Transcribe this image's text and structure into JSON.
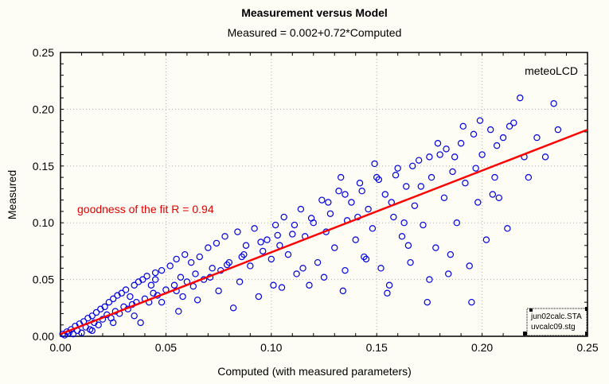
{
  "chart_data": {
    "type": "scatter",
    "title": "Measurement versus Model",
    "subtitle": "Measured = 0.002+0.72*Computed",
    "xlabel": "Computed (with measured parameters)",
    "ylabel": "Measured",
    "xlim": [
      0,
      0.25
    ],
    "ylim": [
      0,
      0.25
    ],
    "xticks": [
      "0.00",
      "0.05",
      "0.10",
      "0.15",
      "0.20",
      "0.25"
    ],
    "yticks": [
      "0.00",
      "0.05",
      "0.10",
      "0.15",
      "0.20",
      "0.25"
    ],
    "grid": true,
    "fit": {
      "intercept": 0.002,
      "slope": 0.72,
      "color": "#ff0000"
    },
    "annotation": "goodness of the fit R = 0.94",
    "corner_label": "meteoLCD",
    "legend_box": [
      "jun02calc.STA",
      "uvcalc09.stg"
    ],
    "marker_color": "#0000e0",
    "points": [
      [
        0.001,
        0.002
      ],
      [
        0.002,
        0.001
      ],
      [
        0.003,
        0.004
      ],
      [
        0.004,
        0.003
      ],
      [
        0.005,
        0.006
      ],
      [
        0.006,
        0.002
      ],
      [
        0.007,
        0.009
      ],
      [
        0.008,
        0.005
      ],
      [
        0.009,
        0.011
      ],
      [
        0.01,
        0.003
      ],
      [
        0.011,
        0.013
      ],
      [
        0.012,
        0.008
      ],
      [
        0.013,
        0.016
      ],
      [
        0.014,
        0.006
      ],
      [
        0.015,
        0.018
      ],
      [
        0.016,
        0.012
      ],
      [
        0.017,
        0.021
      ],
      [
        0.018,
        0.01
      ],
      [
        0.019,
        0.024
      ],
      [
        0.02,
        0.015
      ],
      [
        0.021,
        0.026
      ],
      [
        0.022,
        0.019
      ],
      [
        0.023,
        0.03
      ],
      [
        0.024,
        0.016
      ],
      [
        0.025,
        0.033
      ],
      [
        0.026,
        0.022
      ],
      [
        0.027,
        0.036
      ],
      [
        0.028,
        0.02
      ],
      [
        0.029,
        0.038
      ],
      [
        0.03,
        0.026
      ],
      [
        0.031,
        0.041
      ],
      [
        0.032,
        0.024
      ],
      [
        0.033,
        0.035
      ],
      [
        0.034,
        0.028
      ],
      [
        0.035,
        0.045
      ],
      [
        0.036,
        0.03
      ],
      [
        0.037,
        0.048
      ],
      [
        0.038,
        0.012
      ],
      [
        0.039,
        0.05
      ],
      [
        0.04,
        0.033
      ],
      [
        0.041,
        0.053
      ],
      [
        0.042,
        0.03
      ],
      [
        0.043,
        0.045
      ],
      [
        0.044,
        0.038
      ],
      [
        0.045,
        0.056
      ],
      [
        0.046,
        0.036
      ],
      [
        0.048,
        0.058
      ],
      [
        0.05,
        0.041
      ],
      [
        0.052,
        0.062
      ],
      [
        0.054,
        0.045
      ],
      [
        0.055,
        0.068
      ],
      [
        0.056,
        0.022
      ],
      [
        0.057,
        0.052
      ],
      [
        0.058,
        0.035
      ],
      [
        0.059,
        0.072
      ],
      [
        0.06,
        0.048
      ],
      [
        0.062,
        0.065
      ],
      [
        0.064,
        0.055
      ],
      [
        0.066,
        0.07
      ],
      [
        0.068,
        0.05
      ],
      [
        0.07,
        0.078
      ],
      [
        0.072,
        0.06
      ],
      [
        0.074,
        0.082
      ],
      [
        0.076,
        0.058
      ],
      [
        0.078,
        0.088
      ],
      [
        0.08,
        0.065
      ],
      [
        0.082,
        0.025
      ],
      [
        0.084,
        0.092
      ],
      [
        0.086,
        0.07
      ],
      [
        0.088,
        0.08
      ],
      [
        0.09,
        0.062
      ],
      [
        0.092,
        0.095
      ],
      [
        0.094,
        0.035
      ],
      [
        0.096,
        0.075
      ],
      [
        0.098,
        0.085
      ],
      [
        0.1,
        0.068
      ],
      [
        0.101,
        0.045
      ],
      [
        0.102,
        0.098
      ],
      [
        0.104,
        0.08
      ],
      [
        0.106,
        0.105
      ],
      [
        0.108,
        0.072
      ],
      [
        0.11,
        0.09
      ],
      [
        0.112,
        0.055
      ],
      [
        0.114,
        0.112
      ],
      [
        0.116,
        0.088
      ],
      [
        0.118,
        0.045
      ],
      [
        0.12,
        0.1
      ],
      [
        0.122,
        0.065
      ],
      [
        0.124,
        0.12
      ],
      [
        0.126,
        0.092
      ],
      [
        0.128,
        0.108
      ],
      [
        0.13,
        0.078
      ],
      [
        0.132,
        0.128
      ],
      [
        0.134,
        0.04
      ],
      [
        0.136,
        0.102
      ],
      [
        0.138,
        0.118
      ],
      [
        0.14,
        0.085
      ],
      [
        0.142,
        0.135
      ],
      [
        0.144,
        0.07
      ],
      [
        0.146,
        0.112
      ],
      [
        0.148,
        0.095
      ],
      [
        0.15,
        0.14
      ],
      [
        0.152,
        0.06
      ],
      [
        0.154,
        0.125
      ],
      [
        0.156,
        0.045
      ],
      [
        0.158,
        0.105
      ],
      [
        0.16,
        0.148
      ],
      [
        0.162,
        0.088
      ],
      [
        0.164,
        0.132
      ],
      [
        0.166,
        0.065
      ],
      [
        0.168,
        0.115
      ],
      [
        0.17,
        0.155
      ],
      [
        0.172,
        0.098
      ],
      [
        0.174,
        0.03
      ],
      [
        0.176,
        0.14
      ],
      [
        0.178,
        0.078
      ],
      [
        0.18,
        0.16
      ],
      [
        0.182,
        0.122
      ],
      [
        0.184,
        0.055
      ],
      [
        0.186,
        0.145
      ],
      [
        0.188,
        0.1
      ],
      [
        0.19,
        0.17
      ],
      [
        0.192,
        0.135
      ],
      [
        0.194,
        0.062
      ],
      [
        0.196,
        0.178
      ],
      [
        0.198,
        0.118
      ],
      [
        0.2,
        0.16
      ],
      [
        0.202,
        0.085
      ],
      [
        0.204,
        0.182
      ],
      [
        0.206,
        0.14
      ],
      [
        0.208,
        0.122
      ],
      [
        0.21,
        0.175
      ],
      [
        0.212,
        0.095
      ],
      [
        0.215,
        0.188
      ],
      [
        0.218,
        0.21
      ],
      [
        0.22,
        0.158
      ],
      [
        0.222,
        0.14
      ],
      [
        0.226,
        0.175
      ],
      [
        0.23,
        0.158
      ],
      [
        0.234,
        0.205
      ],
      [
        0.236,
        0.182
      ],
      [
        0.045,
        0.05
      ],
      [
        0.048,
        0.03
      ],
      [
        0.055,
        0.04
      ],
      [
        0.063,
        0.044
      ],
      [
        0.071,
        0.052
      ],
      [
        0.079,
        0.063
      ],
      [
        0.087,
        0.072
      ],
      [
        0.095,
        0.083
      ],
      [
        0.103,
        0.089
      ],
      [
        0.111,
        0.098
      ],
      [
        0.119,
        0.104
      ],
      [
        0.127,
        0.118
      ],
      [
        0.135,
        0.125
      ],
      [
        0.143,
        0.128
      ],
      [
        0.151,
        0.138
      ],
      [
        0.159,
        0.142
      ],
      [
        0.167,
        0.15
      ],
      [
        0.175,
        0.158
      ],
      [
        0.183,
        0.165
      ],
      [
        0.191,
        0.185
      ],
      [
        0.199,
        0.19
      ],
      [
        0.207,
        0.168
      ],
      [
        0.213,
        0.185
      ],
      [
        0.015,
        0.005
      ],
      [
        0.025,
        0.012
      ],
      [
        0.035,
        0.018
      ],
      [
        0.065,
        0.032
      ],
      [
        0.075,
        0.04
      ],
      [
        0.085,
        0.048
      ],
      [
        0.105,
        0.043
      ],
      [
        0.115,
        0.06
      ],
      [
        0.125,
        0.052
      ],
      [
        0.135,
        0.058
      ],
      [
        0.145,
        0.068
      ],
      [
        0.155,
        0.038
      ],
      [
        0.165,
        0.08
      ],
      [
        0.175,
        0.05
      ],
      [
        0.185,
        0.072
      ],
      [
        0.195,
        0.03
      ],
      [
        0.205,
        0.125
      ],
      [
        0.133,
        0.14
      ],
      [
        0.141,
        0.105
      ],
      [
        0.149,
        0.152
      ],
      [
        0.157,
        0.118
      ],
      [
        0.163,
        0.1
      ],
      [
        0.171,
        0.132
      ],
      [
        0.179,
        0.17
      ],
      [
        0.187,
        0.158
      ],
      [
        0.197,
        0.148
      ]
    ]
  }
}
